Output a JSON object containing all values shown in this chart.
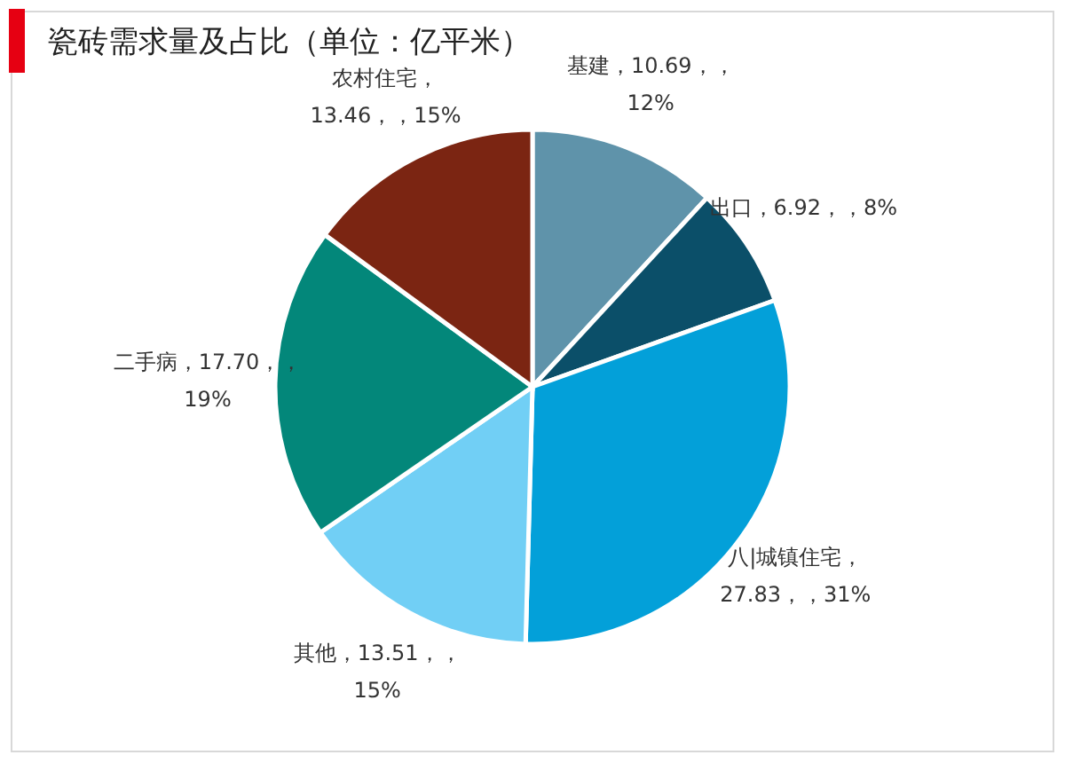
{
  "chart_data": {
    "type": "pie",
    "title": "瓷砖需求量及占比（单位：亿平米）",
    "categories": [
      "基建",
      "出口",
      "八|城镇住宅",
      "其他",
      "二手病",
      "农村住宅"
    ],
    "values": [
      10.69,
      6.92,
      27.83,
      13.51,
      17.7,
      13.46
    ],
    "value_labels": [
      "，10.69，，12%",
      "，6.92，，8%",
      "，27.83，，31%",
      "，13.51，，15%",
      "，17.70，，19%",
      "，13.46，，15%"
    ],
    "colors": [
      "#5f93aa",
      "#0b4f69",
      "#03a0d9",
      "#71cff5",
      "#03877a",
      "#7b2512"
    ]
  }
}
